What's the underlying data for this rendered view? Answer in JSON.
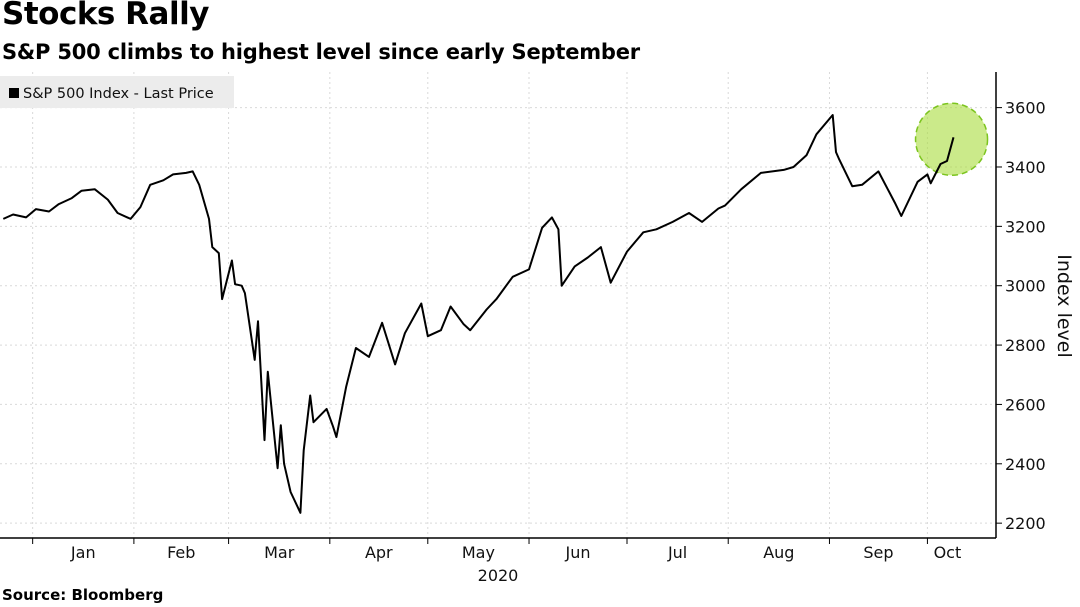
{
  "title": "Stocks Rally",
  "subtitle": "S&P 500 climbs to highest level since early September",
  "source": "Source: Bloomberg",
  "highlight_color": "#a8dc3c",
  "line_color": "#000000",
  "chart_data": {
    "type": "line",
    "title": "Stocks Rally",
    "subtitle": "S&P 500 climbs to highest level since early September",
    "ylabel": "Index level",
    "xlabel": "2020",
    "ylim": [
      2150,
      3720
    ],
    "y_ticks": [
      2200,
      2400,
      2600,
      2800,
      3000,
      3200,
      3400,
      3600
    ],
    "y_axis_side": "right",
    "x_tick_labels": [
      "Jan",
      "Feb",
      "Mar",
      "Apr",
      "May",
      "Jun",
      "Jul",
      "Aug",
      "Sep",
      "Oct"
    ],
    "x_year_label": "2020",
    "grid": true,
    "legend": {
      "label": "S&P 500 Index - Last Price",
      "position": "top-left"
    },
    "highlight": {
      "shape": "circle",
      "around": "last value",
      "color": "#a8dc3c"
    },
    "series": [
      {
        "name": "S&P 500 Index - Last Price",
        "x": [
          "2019-12-23",
          "2019-12-26",
          "2019-12-30",
          "2020-01-02",
          "2020-01-06",
          "2020-01-09",
          "2020-01-13",
          "2020-01-16",
          "2020-01-20",
          "2020-01-24",
          "2020-01-27",
          "2020-01-31",
          "2020-02-03",
          "2020-02-06",
          "2020-02-10",
          "2020-02-13",
          "2020-02-17",
          "2020-02-19",
          "2020-02-21",
          "2020-02-24",
          "2020-02-25",
          "2020-02-27",
          "2020-02-28",
          "2020-03-02",
          "2020-03-03",
          "2020-03-05",
          "2020-03-06",
          "2020-03-09",
          "2020-03-10",
          "2020-03-12",
          "2020-03-13",
          "2020-03-16",
          "2020-03-17",
          "2020-03-18",
          "2020-03-20",
          "2020-03-23",
          "2020-03-24",
          "2020-03-26",
          "2020-03-27",
          "2020-03-31",
          "2020-04-02",
          "2020-04-03",
          "2020-04-06",
          "2020-04-09",
          "2020-04-13",
          "2020-04-17",
          "2020-04-21",
          "2020-04-24",
          "2020-04-29",
          "2020-05-01",
          "2020-05-05",
          "2020-05-08",
          "2020-05-12",
          "2020-05-14",
          "2020-05-19",
          "2020-05-22",
          "2020-05-27",
          "2020-06-01",
          "2020-06-05",
          "2020-06-08",
          "2020-06-10",
          "2020-06-11",
          "2020-06-15",
          "2020-06-19",
          "2020-06-23",
          "2020-06-26",
          "2020-07-01",
          "2020-07-06",
          "2020-07-10",
          "2020-07-15",
          "2020-07-20",
          "2020-07-24",
          "2020-07-29",
          "2020-07-31",
          "2020-08-05",
          "2020-08-11",
          "2020-08-18",
          "2020-08-21",
          "2020-08-25",
          "2020-08-28",
          "2020-09-02",
          "2020-09-03",
          "2020-09-04",
          "2020-09-08",
          "2020-09-11",
          "2020-09-16",
          "2020-09-21",
          "2020-09-23",
          "2020-09-28",
          "2020-10-01",
          "2020-10-02",
          "2020-10-05",
          "2020-10-07",
          "2020-10-09"
        ],
        "values": [
          3225,
          3240,
          3230,
          3258,
          3250,
          3275,
          3295,
          3320,
          3325,
          3290,
          3245,
          3225,
          3265,
          3340,
          3355,
          3375,
          3380,
          3385,
          3340,
          3225,
          3130,
          3110,
          2955,
          3085,
          3005,
          3000,
          2975,
          2750,
          2880,
          2480,
          2710,
          2385,
          2530,
          2400,
          2305,
          2235,
          2445,
          2630,
          2540,
          2585,
          2525,
          2490,
          2660,
          2790,
          2760,
          2875,
          2735,
          2840,
          2940,
          2830,
          2850,
          2930,
          2870,
          2850,
          2920,
          2955,
          3030,
          3055,
          3195,
          3230,
          3190,
          3000,
          3065,
          3095,
          3130,
          3010,
          3115,
          3180,
          3190,
          3215,
          3245,
          3215,
          3260,
          3270,
          3325,
          3380,
          3390,
          3400,
          3440,
          3510,
          3575,
          3450,
          3425,
          3335,
          3340,
          3385,
          3280,
          3235,
          3350,
          3375,
          3345,
          3410,
          3420,
          3500
        ]
      }
    ]
  }
}
